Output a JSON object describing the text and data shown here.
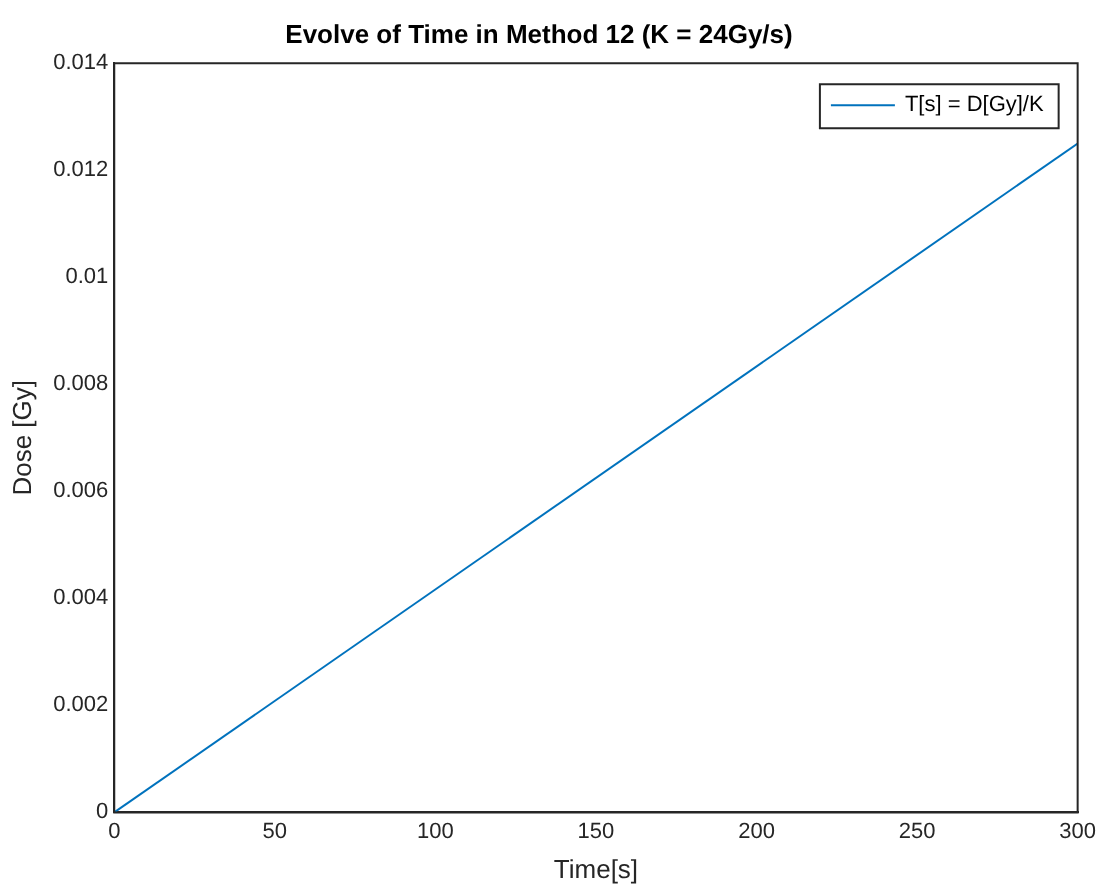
{
  "chart_data": {
    "type": "line",
    "title": "Evolve of Time in Method 12 (K = 24Gy/s)",
    "xlabel": "Time[s]",
    "ylabel": "Dose [Gy]",
    "x": [
      0,
      300
    ],
    "series": [
      {
        "name": "T[s] = D[Gy]/K",
        "color": "#0072bd",
        "values": [
          0,
          0.0125
        ]
      }
    ],
    "xlim": [
      0,
      300
    ],
    "xticks": [
      0,
      50,
      100,
      150,
      200,
      250,
      300
    ],
    "ylim": [
      0,
      0.014
    ],
    "yticks": [
      0,
      0.002,
      0.004,
      0.006,
      0.008,
      0.01,
      0.012,
      0.014
    ],
    "grid": false,
    "legend": "top right",
    "marker": "none",
    "line_style": "solid"
  }
}
